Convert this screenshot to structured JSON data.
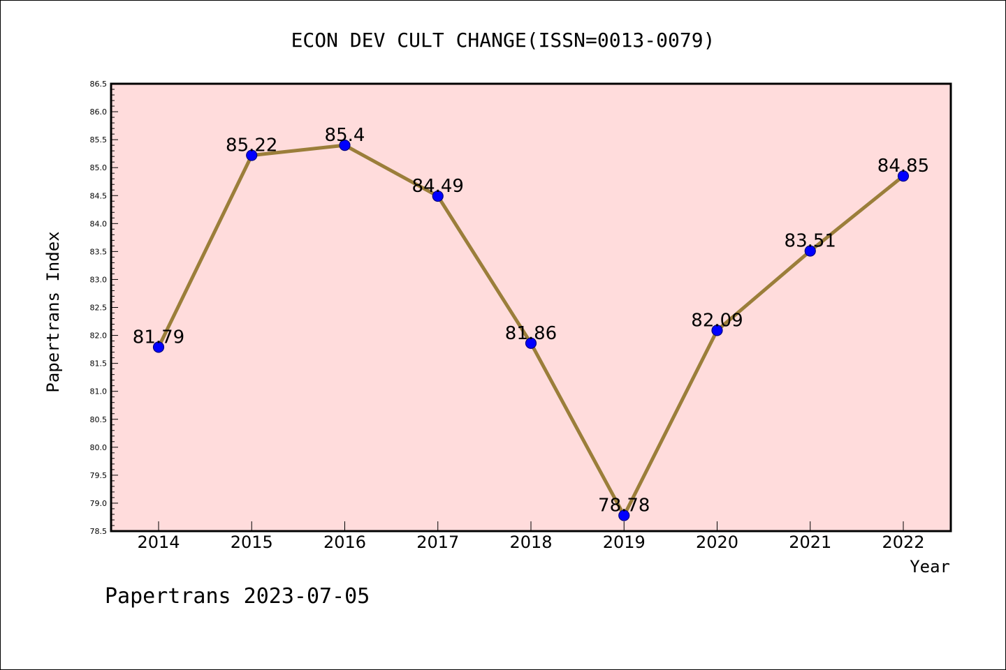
{
  "chart_data": {
    "type": "line",
    "title": "ECON DEV CULT CHANGE(ISSN=0013-0079)",
    "xlabel": "Year",
    "ylabel": "Papertrans Index",
    "categories": [
      "2014",
      "2015",
      "2016",
      "2017",
      "2018",
      "2019",
      "2020",
      "2021",
      "2022"
    ],
    "series": [
      {
        "values": [
          81.79,
          85.22,
          85.4,
          84.49,
          81.86,
          78.78,
          82.09,
          83.51,
          84.85
        ]
      }
    ],
    "data_labels": [
      "81.79",
      "85.22",
      "85.4",
      "84.49",
      "81.86",
      "78.78",
      "82.09",
      "83.51",
      "84.85"
    ],
    "ylim": [
      78.5,
      86.5
    ],
    "yticks": [
      "78.5",
      "79.0",
      "79.5",
      "80.0",
      "80.5",
      "81.0",
      "81.5",
      "82.0",
      "82.5",
      "83.0",
      "83.5",
      "84.0",
      "84.5",
      "85.0",
      "85.5",
      "86.0",
      "86.5"
    ],
    "grid": false,
    "legend": "none",
    "colors": {
      "plot_background": "#ffdcdc",
      "line": "#9b7e3a",
      "marker": "#0000ff",
      "marker_edge": "#000080"
    }
  },
  "footer": "Papertrans 2023-07-05"
}
